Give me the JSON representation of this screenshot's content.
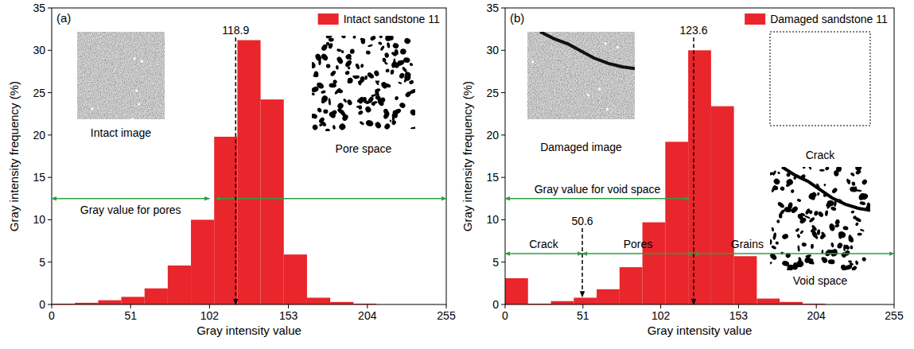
{
  "chart_data": [
    {
      "type": "histogram",
      "panel_label": "(a)",
      "name": "Intact sandstone 11",
      "color": "#e8262b",
      "legend": "upper right",
      "xlabel": "Gray intensity value",
      "ylabel": "Gray intensity frequency (%)",
      "bins": [
        0,
        15,
        30,
        45,
        60,
        75,
        90,
        105,
        120,
        135,
        150,
        165,
        180,
        195,
        210,
        225,
        240,
        255
      ],
      "values": [
        0.1,
        0.2,
        0.5,
        0.9,
        1.9,
        4.6,
        10.0,
        19.8,
        31.2,
        24.2,
        5.9,
        0.8,
        0.3,
        0.1,
        0,
        0,
        0
      ],
      "xlim": [
        0,
        255
      ],
      "ylim": [
        0,
        35
      ],
      "xticks": [
        0,
        51,
        102,
        153,
        204,
        255
      ],
      "yticks": [
        0,
        5,
        10,
        15,
        20,
        25,
        30,
        35
      ],
      "markers": [
        {
          "value": 118.9,
          "from_y": 31.5,
          "to_y": 0
        }
      ],
      "ranges": [
        {
          "label": "Gray value for pores",
          "from": 0,
          "to": 102,
          "y": 12.5,
          "label_position": "below"
        },
        {
          "from": 106,
          "to": 255,
          "y": 12.5
        }
      ],
      "insets": [
        {
          "label": "Intact image",
          "kind": "grayscale"
        },
        {
          "label": "Pore space",
          "kind": "pores"
        }
      ]
    },
    {
      "type": "histogram",
      "panel_label": "(b)",
      "name": "Damaged sandstone 11",
      "color": "#e8262b",
      "legend": "upper right",
      "xlabel": "Gray intensity value",
      "ylabel": "Gray intensity frequency (%)",
      "bins": [
        0,
        15,
        30,
        45,
        60,
        75,
        90,
        105,
        120,
        135,
        150,
        165,
        180,
        195,
        210,
        225,
        240,
        255
      ],
      "values": [
        3.1,
        0.1,
        0.4,
        0.8,
        1.8,
        4.4,
        9.7,
        19.2,
        30.0,
        23.4,
        5.7,
        0.7,
        0.3,
        0.1,
        0,
        0,
        0
      ],
      "xlim": [
        0,
        255
      ],
      "ylim": [
        0,
        35
      ],
      "xticks": [
        0,
        51,
        102,
        153,
        204,
        255
      ],
      "yticks": [
        0,
        5,
        10,
        15,
        20,
        25,
        30,
        35
      ],
      "markers": [
        {
          "value": 123.6,
          "from_y": 31.5,
          "to_y": 0
        },
        {
          "value": 50.6,
          "from_y": 9,
          "to_y": 0.9
        }
      ],
      "ranges": [
        {
          "label": "Gray value for void space",
          "from": 0,
          "to": 121,
          "y": 12.5,
          "label_position": "above"
        },
        {
          "label": "Crack",
          "from": 0,
          "to": 50.6,
          "y": 6,
          "label_position": "above"
        },
        {
          "label": "Pores",
          "from": 50.6,
          "to": 123.6,
          "y": 6,
          "label_position": "above"
        },
        {
          "label": "Grains",
          "from": 123.6,
          "to": 255,
          "y": 6,
          "label_position": "above"
        }
      ],
      "insets": [
        {
          "label": "Damaged image",
          "kind": "grayscale_crack"
        },
        {
          "label": "Crack",
          "kind": "crack"
        },
        {
          "label": "Void space",
          "kind": "pores_crack"
        }
      ]
    }
  ]
}
